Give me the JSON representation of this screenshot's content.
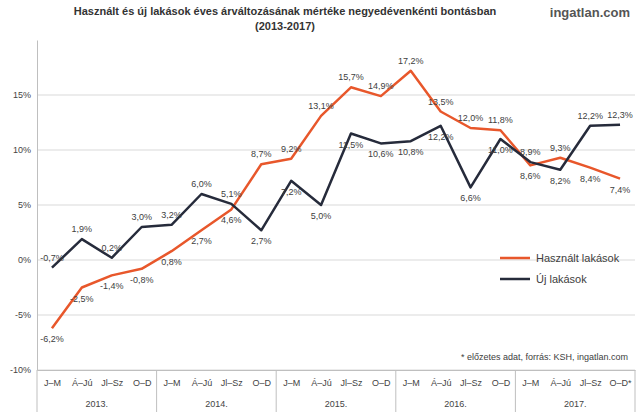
{
  "chart_data": {
    "type": "line",
    "title": "Használt és új lakások éves árváltozásának mértéke negyedévenkénti bontásban",
    "subtitle": "(2013-2017)",
    "brand": "ingatlan.com",
    "source_note": "* előzetes adat, forrás: KSH, ingatlan.com",
    "categories": [
      "J–M",
      "Á–Jú",
      "Jl–Sz",
      "O–D",
      "J–M",
      "Á–Jú",
      "Jl–Sz",
      "O–D",
      "J–M",
      "Á–Jú",
      "Jl–Sz",
      "O–D",
      "J–M",
      "Á–Jú",
      "Jl–Sz",
      "O–D",
      "J–M",
      "Á–Jú",
      "Jl–Sz",
      "O–D*"
    ],
    "year_labels": [
      "2013.",
      "2014.",
      "2015.",
      "2016.",
      "2017."
    ],
    "series": [
      {
        "name": "Használt lakások",
        "color": "#e8572b",
        "values": [
          -6.2,
          -2.5,
          -1.4,
          -0.8,
          0.8,
          2.7,
          4.6,
          8.7,
          9.2,
          13.1,
          15.7,
          14.9,
          17.2,
          13.5,
          12.0,
          11.8,
          8.6,
          9.3,
          8.4,
          7.4
        ],
        "value_labels": [
          "-6,2%",
          "-2,5%",
          "-1,4%",
          "-0,8%",
          "0,8%",
          "2,7%",
          "4,6%",
          "8,7%",
          "9,2%",
          "13,1%",
          "15,7%",
          "14,9%",
          "17,2%",
          "13,5%",
          "12,0%",
          "11,8%",
          "8,6%",
          "9,3%",
          "8,4%",
          "7,4%"
        ]
      },
      {
        "name": "Új lakások",
        "color": "#262b3b",
        "values": [
          -0.7,
          1.9,
          0.2,
          3.0,
          3.2,
          6.0,
          5.1,
          2.7,
          7.2,
          5.0,
          11.5,
          10.6,
          10.8,
          12.2,
          6.6,
          11.0,
          8.9,
          8.2,
          12.2,
          12.3
        ],
        "value_labels": [
          "-0,7%",
          "1,9%",
          "0,2%",
          "3,0%",
          "3,2%",
          "6,0%",
          "5,1%",
          "2,7%",
          "7,2%",
          "5,0%",
          "11,5%",
          "10,6%",
          "10,8%",
          "12,2%",
          "6,6%",
          "11,0%",
          "8,9%",
          "8,2%",
          "12,2%",
          "12,3%"
        ]
      }
    ],
    "ylim": [
      -10,
      20
    ],
    "yticks": [
      {
        "value": -10,
        "label": "-10%"
      },
      {
        "value": -5,
        "label": "-5%"
      },
      {
        "value": 0,
        "label": "0%"
      },
      {
        "value": 5,
        "label": "5%"
      },
      {
        "value": 10,
        "label": "10%"
      },
      {
        "value": 15,
        "label": "15%"
      }
    ],
    "grid": true,
    "legend": "right",
    "data_labels": true
  }
}
